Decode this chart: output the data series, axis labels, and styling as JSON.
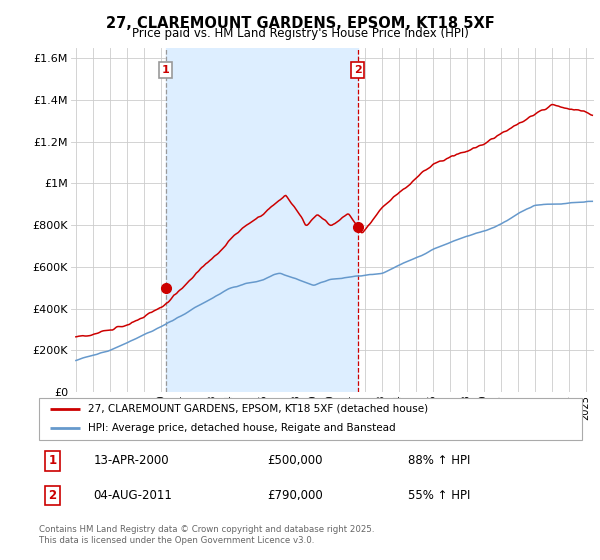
{
  "title": "27, CLAREMOUNT GARDENS, EPSOM, KT18 5XF",
  "subtitle": "Price paid vs. HM Land Registry's House Price Index (HPI)",
  "legend_line1": "27, CLAREMOUNT GARDENS, EPSOM, KT18 5XF (detached house)",
  "legend_line2": "HPI: Average price, detached house, Reigate and Banstead",
  "transaction1_date": "13-APR-2000",
  "transaction1_price": "£500,000",
  "transaction1_hpi": "88% ↑ HPI",
  "transaction2_date": "04-AUG-2011",
  "transaction2_price": "£790,000",
  "transaction2_hpi": "55% ↑ HPI",
  "footer": "Contains HM Land Registry data © Crown copyright and database right 2025.\nThis data is licensed under the Open Government Licence v3.0.",
  "line1_color": "#cc0000",
  "line2_color": "#6699cc",
  "vline1_color": "#999999",
  "vline2_color": "#cc0000",
  "shade_color": "#ddeeff",
  "background_color": "#ffffff",
  "grid_color": "#cccccc",
  "ylim": [
    0,
    1650000
  ],
  "yticks": [
    0,
    200000,
    400000,
    600000,
    800000,
    1000000,
    1200000,
    1400000,
    1600000
  ],
  "ytick_labels": [
    "£0",
    "£200K",
    "£400K",
    "£600K",
    "£800K",
    "£1M",
    "£1.2M",
    "£1.4M",
    "£1.6M"
  ],
  "xmin": 1994.7,
  "xmax": 2025.5,
  "marker1_year": 2000.28,
  "marker1_price": 500000,
  "marker2_year": 2011.59,
  "marker2_price": 790000
}
